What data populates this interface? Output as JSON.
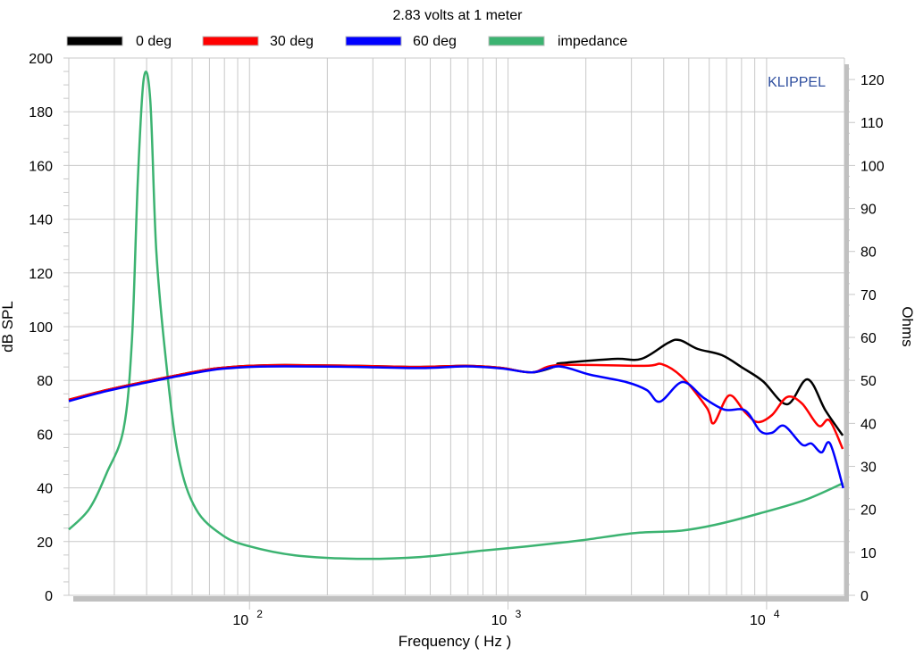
{
  "chart_data": {
    "type": "line",
    "title": "2.83 volts at 1 meter",
    "xlabel": "Frequency ( Hz )",
    "ylabel": "dB SPL",
    "y2label": "Ohms",
    "watermark": "KLIPPEL",
    "xscale": "log",
    "xlim": [
      20,
      20000
    ],
    "ylim": [
      0,
      200
    ],
    "y2lim": [
      0,
      125
    ],
    "grid": true,
    "legend_placement": "top",
    "x_ticks": [
      {
        "value": 100,
        "base": "10",
        "exp": "2"
      },
      {
        "value": 1000,
        "base": "10",
        "exp": "3"
      },
      {
        "value": 10000,
        "base": "10",
        "exp": "4"
      }
    ],
    "y_ticks": [
      "0",
      "20",
      "40",
      "60",
      "80",
      "100",
      "120",
      "140",
      "160",
      "180",
      "200"
    ],
    "y2_ticks": [
      "0",
      "10",
      "20",
      "30",
      "40",
      "50",
      "60",
      "70",
      "80",
      "90",
      "100",
      "110",
      "120"
    ],
    "colors": {
      "watermark": "#2f4f9f",
      "grid": "#c8c8c8",
      "axis_bar": "#c0c0c0"
    },
    "series": [
      {
        "name": "0 deg",
        "axis": "left",
        "color": "#000000",
        "x": [
          20,
          28,
          39,
          53,
          73,
          100,
          137,
          260,
          458,
          682,
          937,
          1240,
          1574,
          1600,
          2580,
          3280,
          4160,
          4620,
          5420,
          6710,
          8070,
          9680,
          12000,
          14400,
          16900,
          19700
        ],
        "y": [
          72.8,
          76.4,
          79.4,
          82,
          84.4,
          85.4,
          85.7,
          85.4,
          85,
          85.4,
          84.7,
          83,
          85.7,
          86.4,
          88,
          88,
          94,
          95,
          91.7,
          89.4,
          84.7,
          79.7,
          71.1,
          80.4,
          68.8,
          59.5
        ]
      },
      {
        "name": "30 deg",
        "axis": "left",
        "color": "#ff0000",
        "x": [
          20,
          28,
          39,
          53,
          73,
          100,
          137,
          260,
          458,
          682,
          937,
          1240,
          1574,
          3360,
          3940,
          4730,
          5870,
          6250,
          7160,
          8260,
          9230,
          10500,
          12000,
          13700,
          15900,
          17500,
          19700
        ],
        "y": [
          72.8,
          76.4,
          79.4,
          82,
          84.4,
          85.4,
          85.7,
          85.4,
          85,
          85.4,
          84.7,
          83,
          85.7,
          85.4,
          86,
          81.1,
          69.8,
          64.1,
          74.4,
          68.1,
          64.5,
          67.1,
          73.8,
          71.4,
          63.1,
          65.1,
          54.5
        ]
      },
      {
        "name": "60 deg",
        "axis": "left",
        "color": "#0000ff",
        "x": [
          20,
          28,
          39,
          53,
          73,
          100,
          137,
          260,
          458,
          682,
          937,
          1240,
          1574,
          2080,
          2860,
          3440,
          3870,
          4730,
          5730,
          6880,
          8260,
          9460,
          10500,
          11700,
          13700,
          14900,
          16300,
          17600,
          19800
        ],
        "y": [
          72.3,
          76,
          79,
          81.6,
          84,
          85,
          85.2,
          85,
          84.6,
          85.2,
          84.5,
          83,
          85.2,
          82.1,
          79.4,
          76.4,
          72.1,
          79.4,
          73.4,
          69.1,
          68.8,
          61.1,
          60.5,
          63.1,
          56.1,
          56.5,
          53.2,
          56.5,
          39.9
        ]
      },
      {
        "name": "impedance",
        "axis": "right",
        "color": "#3cb371",
        "x": [
          20,
          24,
          28,
          32.6,
          35.1,
          37,
          39,
          41.3,
          43.6,
          47.4,
          53,
          62,
          79,
          100,
          150,
          260,
          458,
          800,
          1190,
          1920,
          3100,
          4600,
          6330,
          9460,
          14100,
          19800
        ],
        "y": [
          15.3,
          20.1,
          28.4,
          38.8,
          59.5,
          96.8,
          120.2,
          115.4,
          80.2,
          55.3,
          32.5,
          20.1,
          13.9,
          11.4,
          9.3,
          8.5,
          8.9,
          10.4,
          11.4,
          12.8,
          14.5,
          15,
          16.4,
          19.1,
          22.2,
          26.1
        ]
      }
    ]
  }
}
